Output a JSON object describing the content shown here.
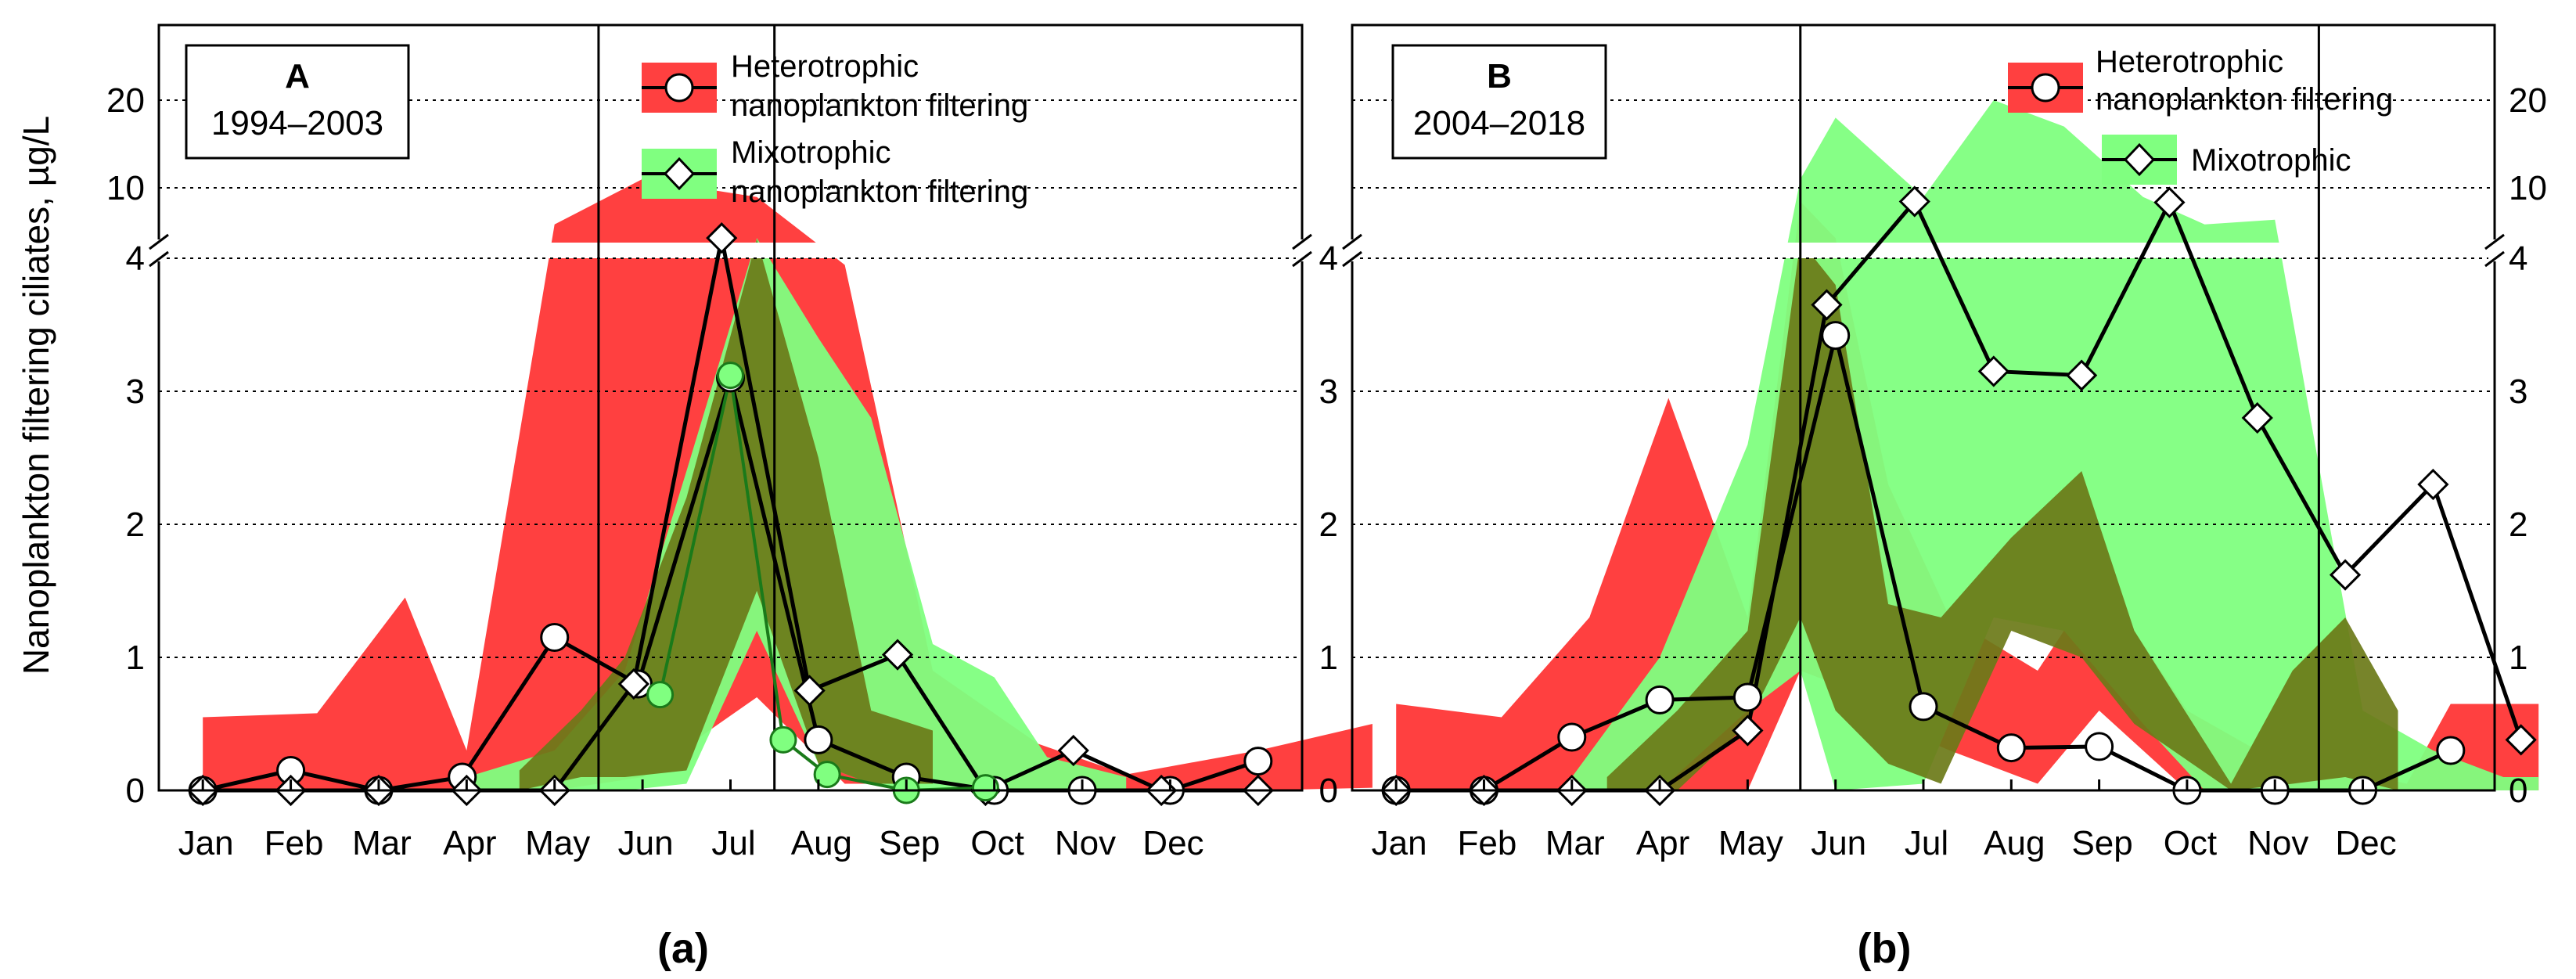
{
  "figure": {
    "ylabel": "Nanoplankton filtering ciliates, µg/L",
    "months": [
      "Jan",
      "Feb",
      "Mar",
      "Apr",
      "May",
      "Jun",
      "Jul",
      "Aug",
      "Sep",
      "Oct",
      "Nov",
      "Dec"
    ],
    "y_ticks_lower": [
      "0",
      "1",
      "2",
      "3",
      "4"
    ],
    "y_ticks_upper": [
      "10",
      "20"
    ]
  },
  "panels": [
    {
      "id": "a",
      "letter": "A",
      "years": "1994–2003",
      "sublabel": "(a)",
      "legend": [
        {
          "line1": "Heterotrophic",
          "line2": "nanoplankton filtering"
        },
        {
          "line1": "Mixotrophic",
          "line2": "nanoplankton filtering"
        }
      ]
    },
    {
      "id": "b",
      "letter": "B",
      "years": "2004–2018",
      "sublabel": "(b)",
      "legend": [
        {
          "line1": "Heterotrophic",
          "line2": "nanoplankton filtering"
        },
        {
          "line1": "Mixotrophic",
          "line2": ""
        }
      ]
    }
  ],
  "chart_data": [
    {
      "type": "area",
      "title": "A 1994–2003",
      "xlabel": "",
      "ylabel": "Nanoplankton filtering ciliates, µg/L",
      "x_unit": "month index (0 = start of Jan, 12 = end of Dec)",
      "ylim_lower": [
        0,
        4
      ],
      "ylim_upper": [
        4,
        25
      ],
      "vlines_month": [
        4.5,
        6.5
      ],
      "series": [
        {
          "name": "Heterotrophic nanoplankton filtering",
          "color": "#ff4040",
          "marker": "circle",
          "line_color": "#000000",
          "x": [
            0,
            1,
            2,
            2.95,
            4,
            4.95,
            6,
            7,
            8,
            9,
            10,
            11,
            12
          ],
          "values": [
            0,
            0.15,
            0,
            0.1,
            1.15,
            0.8,
            3.1,
            0.38,
            0.1,
            0,
            0,
            0,
            0.22
          ],
          "band_low": [
            0,
            0,
            0,
            0,
            0,
            0.1,
            0.7,
            0.05,
            0.05,
            0,
            0,
            0,
            0.02
          ],
          "band_high": [
            0.55,
            0.58,
            1.45,
            0.3,
            6,
            11,
            9,
            3.95,
            0.9,
            0.35,
            0.12,
            0.3,
            0.5
          ],
          "band_x": [
            0,
            1.3,
            2.3,
            3,
            4,
            5,
            6.3,
            7.3,
            8.3,
            9.5,
            10.5,
            12,
            13.3
          ]
        },
        {
          "name": "Mixotrophic nanoplankton filtering",
          "color": "#80ff80",
          "marker": "diamond",
          "line_color": "#000000",
          "x": [
            0,
            1,
            2,
            3,
            4,
            4.9,
            5.9,
            6.9,
            7.9,
            8.9,
            9.9,
            10.9,
            12
          ],
          "values": [
            0,
            0,
            0,
            0,
            0,
            0.8,
            4.5,
            0.75,
            1.02,
            0,
            0.3,
            0,
            0
          ]
        },
        {
          "name": "Mixotrophic mean (green line)",
          "color": "#1a7a1a",
          "x": [
            5.2,
            6,
            6.6,
            7.1,
            8,
            8.9
          ],
          "values": [
            0.72,
            3.12,
            0.38,
            0.12,
            0,
            0.02
          ]
        }
      ]
    },
    {
      "type": "area",
      "title": "B 2004–2018",
      "xlabel": "",
      "ylabel": "Nanoplankton filtering ciliates, µg/L",
      "x_unit": "month index (0 = start of Jan, 12 = end of Dec)",
      "ylim_lower": [
        0,
        4
      ],
      "ylim_upper": [
        4,
        25
      ],
      "vlines_month": [
        4.6,
        10.5
      ],
      "series": [
        {
          "name": "Heterotrophic nanoplankton filtering",
          "color": "#ff4040",
          "marker": "circle",
          "line_color": "#000000",
          "x": [
            0,
            1,
            2,
            3,
            4,
            5,
            6,
            7,
            8,
            9,
            10,
            11,
            12
          ],
          "values": [
            0,
            0,
            0.4,
            0.68,
            0.7,
            3.42,
            0.63,
            0.32,
            0.33,
            0,
            0,
            0,
            0.3
          ]
        },
        {
          "name": "Mixotrophic",
          "color": "#80ff80",
          "marker": "diamond",
          "line_color": "#000000",
          "x": [
            0,
            1,
            2,
            3,
            4,
            4.9,
            5.9,
            6.8,
            7.8,
            8.8,
            9.8,
            10.8,
            11.8,
            12.8
          ],
          "values": [
            0,
            0,
            0,
            0,
            0.45,
            3.65,
            8.5,
            3.15,
            3.12,
            8.4,
            2.8,
            1.62,
            2.3,
            0.38
          ]
        }
      ]
    }
  ]
}
